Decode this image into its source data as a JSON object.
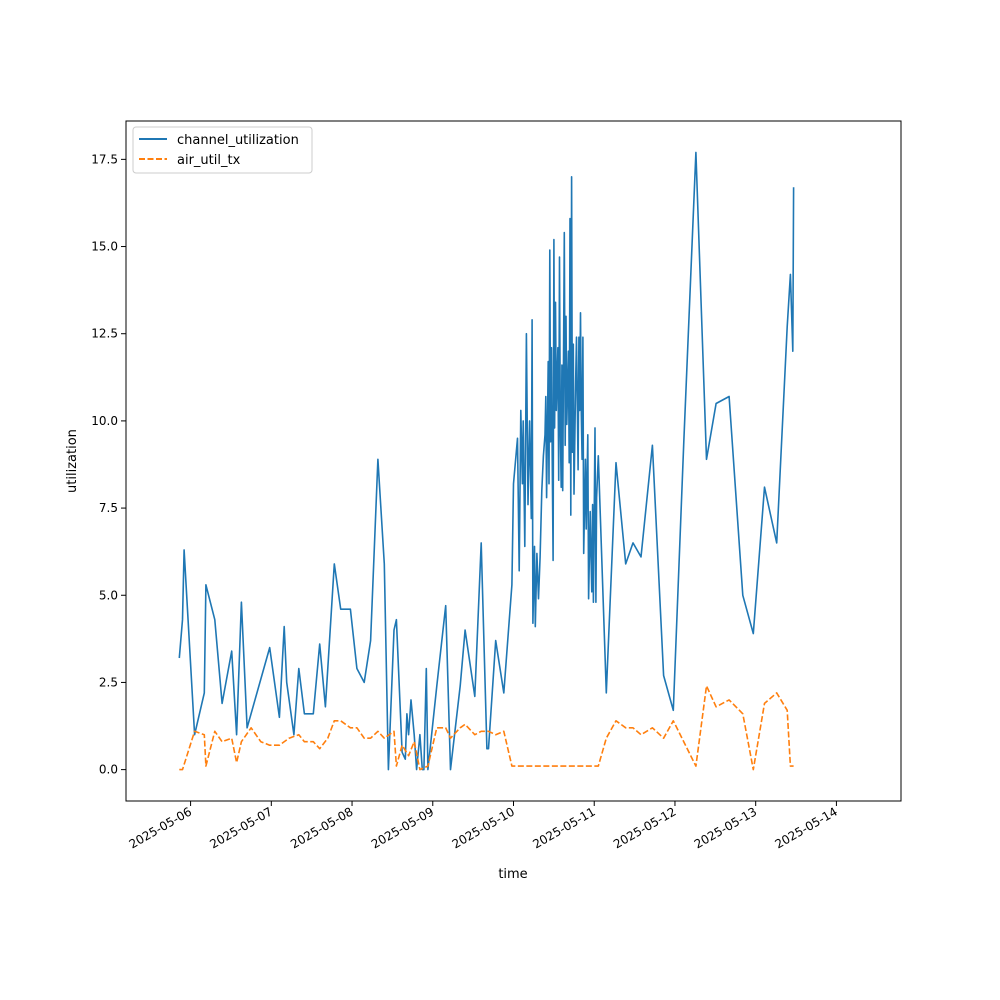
{
  "chart_data": {
    "type": "line",
    "xlabel": "time",
    "ylabel": "utilization",
    "x_ticks": [
      "2025-05-06",
      "2025-05-07",
      "2025-05-08",
      "2025-05-09",
      "2025-05-10",
      "2025-05-11",
      "2025-05-12",
      "2025-05-13",
      "2025-05-14"
    ],
    "y_ticks": [
      "0.0",
      "2.5",
      "5.0",
      "7.5",
      "10.0",
      "12.5",
      "15.0",
      "17.5"
    ],
    "xlim": [
      "2025-05-05 04:48",
      "2025-05-14 19:12"
    ],
    "ylim": [
      -0.9,
      18.6
    ],
    "legend": "top-left",
    "grid": false,
    "series": [
      {
        "name": "channel_utilization",
        "color": "#1f77b4",
        "style": "solid",
        "points": [
          [
            "2025-05-05 20:38",
            3.2
          ],
          [
            "2025-05-05 21:36",
            4.3
          ],
          [
            "2025-05-05 22:05",
            6.3
          ],
          [
            "2025-05-06 01:12",
            1.0
          ],
          [
            "2025-05-06 04:05",
            2.2
          ],
          [
            "2025-05-06 04:34",
            5.3
          ],
          [
            "2025-05-06 07:12",
            4.3
          ],
          [
            "2025-05-06 09:22",
            1.9
          ],
          [
            "2025-05-06 12:14",
            3.4
          ],
          [
            "2025-05-06 13:41",
            1.0
          ],
          [
            "2025-05-06 15:07",
            4.8
          ],
          [
            "2025-05-06 16:48",
            1.2
          ],
          [
            "2025-05-06 23:31",
            3.5
          ],
          [
            "2025-05-07 02:24",
            1.5
          ],
          [
            "2025-05-07 03:50",
            4.1
          ],
          [
            "2025-05-07 04:34",
            2.5
          ],
          [
            "2025-05-07 06:43",
            1.0
          ],
          [
            "2025-05-07 08:10",
            2.9
          ],
          [
            "2025-05-07 09:50",
            1.6
          ],
          [
            "2025-05-07 12:29",
            1.6
          ],
          [
            "2025-05-07 14:24",
            3.6
          ],
          [
            "2025-05-07 16:05",
            1.8
          ],
          [
            "2025-05-07 18:43",
            5.9
          ],
          [
            "2025-05-07 20:38",
            4.6
          ],
          [
            "2025-05-07 23:31",
            4.6
          ],
          [
            "2025-05-08 01:26",
            2.9
          ],
          [
            "2025-05-08 03:36",
            2.5
          ],
          [
            "2025-05-08 05:31",
            3.7
          ],
          [
            "2025-05-08 07:41",
            8.9
          ],
          [
            "2025-05-08 09:36",
            5.9
          ],
          [
            "2025-05-08 10:48",
            0.0
          ],
          [
            "2025-05-08 12:29",
            4.0
          ],
          [
            "2025-05-08 13:12",
            4.3
          ],
          [
            "2025-05-08 14:53",
            0.5
          ],
          [
            "2025-05-08 15:50",
            0.3
          ],
          [
            "2025-05-08 16:19",
            1.6
          ],
          [
            "2025-05-08 16:48",
            1.0
          ],
          [
            "2025-05-08 17:31",
            2.0
          ],
          [
            "2025-05-08 18:29",
            1.0
          ],
          [
            "2025-05-08 19:12",
            0.0
          ],
          [
            "2025-05-08 20:10",
            1.0
          ],
          [
            "2025-05-08 20:53",
            0.0
          ],
          [
            "2025-05-08 21:22",
            0.0
          ],
          [
            "2025-05-08 22:05",
            2.9
          ],
          [
            "2025-05-08 22:34",
            0.0
          ],
          [
            "2025-05-09 01:12",
            2.4
          ],
          [
            "2025-05-09 03:50",
            4.7
          ],
          [
            "2025-05-09 05:17",
            0.0
          ],
          [
            "2025-05-09 08:10",
            2.4
          ],
          [
            "2025-05-09 09:36",
            4.0
          ],
          [
            "2025-05-09 12:29",
            2.1
          ],
          [
            "2025-05-09 14:24",
            6.5
          ],
          [
            "2025-05-09 16:05",
            0.6
          ],
          [
            "2025-05-09 16:34",
            0.6
          ],
          [
            "2025-05-09 18:43",
            3.7
          ],
          [
            "2025-05-09 21:07",
            2.2
          ],
          [
            "2025-05-09 23:31",
            5.3
          ],
          [
            "2025-05-10 00:00",
            8.2
          ],
          [
            "2025-05-10 01:12",
            9.5
          ],
          [
            "2025-05-10 01:41",
            5.7
          ],
          [
            "2025-05-10 02:10",
            10.3
          ],
          [
            "2025-05-10 02:38",
            8.2
          ],
          [
            "2025-05-10 02:53",
            10.0
          ],
          [
            "2025-05-10 03:22",
            6.4
          ],
          [
            "2025-05-10 03:50",
            12.5
          ],
          [
            "2025-05-10 04:19",
            7.6
          ],
          [
            "2025-05-10 04:48",
            10.0
          ],
          [
            "2025-05-10 05:17",
            7.2
          ],
          [
            "2025-05-10 05:31",
            12.9
          ],
          [
            "2025-05-10 05:46",
            4.2
          ],
          [
            "2025-05-10 06:14",
            6.4
          ],
          [
            "2025-05-10 06:29",
            4.1
          ],
          [
            "2025-05-10 06:58",
            6.2
          ],
          [
            "2025-05-10 07:26",
            4.9
          ],
          [
            "2025-05-10 07:55",
            6.1
          ],
          [
            "2025-05-10 08:24",
            8.0
          ],
          [
            "2025-05-10 08:53",
            9.0
          ],
          [
            "2025-05-10 09:22",
            9.6
          ],
          [
            "2025-05-10 09:36",
            10.7
          ],
          [
            "2025-05-10 09:50",
            7.8
          ],
          [
            "2025-05-10 10:19",
            11.7
          ],
          [
            "2025-05-10 10:34",
            8.2
          ],
          [
            "2025-05-10 10:48",
            14.9
          ],
          [
            "2025-05-10 11:02",
            9.4
          ],
          [
            "2025-05-10 11:17",
            12.1
          ],
          [
            "2025-05-10 11:31",
            9.0
          ],
          [
            "2025-05-10 11:46",
            6.0
          ],
          [
            "2025-05-10 12:00",
            15.2
          ],
          [
            "2025-05-10 12:14",
            9.8
          ],
          [
            "2025-05-10 12:29",
            13.4
          ],
          [
            "2025-05-10 12:43",
            10.3
          ],
          [
            "2025-05-10 13:12",
            12.1
          ],
          [
            "2025-05-10 13:26",
            8.3
          ],
          [
            "2025-05-10 13:41",
            14.7
          ],
          [
            "2025-05-10 13:55",
            9.9
          ],
          [
            "2025-05-10 14:10",
            8.1
          ],
          [
            "2025-05-10 14:24",
            11.6
          ],
          [
            "2025-05-10 14:38",
            8.0
          ],
          [
            "2025-05-10 15:07",
            15.4
          ],
          [
            "2025-05-10 15:22",
            9.3
          ],
          [
            "2025-05-10 15:36",
            13.0
          ],
          [
            "2025-05-10 15:50",
            9.9
          ],
          [
            "2025-05-10 16:19",
            12.0
          ],
          [
            "2025-05-10 16:34",
            8.8
          ],
          [
            "2025-05-10 16:48",
            15.8
          ],
          [
            "2025-05-10 17:02",
            7.3
          ],
          [
            "2025-05-10 17:17",
            17.0
          ],
          [
            "2025-05-10 17:31",
            9.1
          ],
          [
            "2025-05-10 17:46",
            12.2
          ],
          [
            "2025-05-10 18:00",
            7.9
          ],
          [
            "2025-05-10 18:29",
            11.2
          ],
          [
            "2025-05-10 18:43",
            12.4
          ],
          [
            "2025-05-10 19:12",
            8.6
          ],
          [
            "2025-05-10 19:26",
            12.4
          ],
          [
            "2025-05-10 19:41",
            10.3
          ],
          [
            "2025-05-10 19:55",
            13.1
          ],
          [
            "2025-05-10 20:10",
            10.2
          ],
          [
            "2025-05-10 20:24",
            8.9
          ],
          [
            "2025-05-10 20:38",
            12.4
          ],
          [
            "2025-05-10 20:53",
            6.2
          ],
          [
            "2025-05-10 21:22",
            8.9
          ],
          [
            "2025-05-10 21:36",
            6.9
          ],
          [
            "2025-05-10 22:05",
            9.6
          ],
          [
            "2025-05-10 22:19",
            4.9
          ],
          [
            "2025-05-10 22:48",
            7.4
          ],
          [
            "2025-05-10 23:02",
            6.1
          ],
          [
            "2025-05-10 23:17",
            5.1
          ],
          [
            "2025-05-10 23:31",
            7.6
          ],
          [
            "2025-05-10 23:46",
            4.8
          ],
          [
            "2025-05-11 00:14",
            9.8
          ],
          [
            "2025-05-11 00:29",
            4.8
          ],
          [
            "2025-05-11 00:43",
            7.8
          ],
          [
            "2025-05-11 01:12",
            9.0
          ],
          [
            "2025-05-11 03:36",
            2.2
          ],
          [
            "2025-05-11 06:29",
            8.8
          ],
          [
            "2025-05-11 09:22",
            5.9
          ],
          [
            "2025-05-11 11:31",
            6.5
          ],
          [
            "2025-05-11 13:55",
            6.1
          ],
          [
            "2025-05-11 17:17",
            9.3
          ],
          [
            "2025-05-11 20:38",
            2.7
          ],
          [
            "2025-05-11 23:31",
            1.7
          ],
          [
            "2025-05-12 02:38",
            9.4
          ],
          [
            "2025-05-12 06:14",
            17.7
          ],
          [
            "2025-05-12 09:22",
            8.9
          ],
          [
            "2025-05-12 12:14",
            10.5
          ],
          [
            "2025-05-12 16:05",
            10.7
          ],
          [
            "2025-05-12 20:10",
            5.0
          ],
          [
            "2025-05-12 23:17",
            3.9
          ],
          [
            "2025-05-13 02:38",
            8.1
          ],
          [
            "2025-05-13 06:14",
            6.5
          ],
          [
            "2025-05-13 09:22",
            12.7
          ],
          [
            "2025-05-13 10:19",
            14.2
          ],
          [
            "2025-05-13 11:02",
            12.0
          ],
          [
            "2025-05-13 11:17",
            16.7
          ]
        ]
      },
      {
        "name": "air_util_tx",
        "color": "#ff7f0e",
        "style": "dashed",
        "points": [
          [
            "2025-05-05 20:38",
            0.0
          ],
          [
            "2025-05-05 21:36",
            0.0
          ],
          [
            "2025-05-06 01:12",
            1.1
          ],
          [
            "2025-05-06 04:05",
            1.0
          ],
          [
            "2025-05-06 04:34",
            0.1
          ],
          [
            "2025-05-06 07:12",
            1.1
          ],
          [
            "2025-05-06 09:22",
            0.8
          ],
          [
            "2025-05-06 12:14",
            0.9
          ],
          [
            "2025-05-06 13:41",
            0.2
          ],
          [
            "2025-05-06 15:07",
            0.8
          ],
          [
            "2025-05-06 18:00",
            1.2
          ],
          [
            "2025-05-06 20:53",
            0.8
          ],
          [
            "2025-05-06 23:31",
            0.7
          ],
          [
            "2025-05-07 02:24",
            0.7
          ],
          [
            "2025-05-07 05:17",
            0.9
          ],
          [
            "2025-05-07 08:10",
            1.0
          ],
          [
            "2025-05-07 09:50",
            0.8
          ],
          [
            "2025-05-07 12:29",
            0.8
          ],
          [
            "2025-05-07 14:24",
            0.6
          ],
          [
            "2025-05-07 16:48",
            0.9
          ],
          [
            "2025-05-07 18:43",
            1.4
          ],
          [
            "2025-05-07 20:38",
            1.4
          ],
          [
            "2025-05-07 23:31",
            1.2
          ],
          [
            "2025-05-08 01:26",
            1.2
          ],
          [
            "2025-05-08 03:36",
            0.9
          ],
          [
            "2025-05-08 05:31",
            0.9
          ],
          [
            "2025-05-08 07:41",
            1.1
          ],
          [
            "2025-05-08 09:36",
            0.9
          ],
          [
            "2025-05-08 12:29",
            1.1
          ],
          [
            "2025-05-08 13:12",
            0.1
          ],
          [
            "2025-05-08 14:53",
            0.7
          ],
          [
            "2025-05-08 16:48",
            0.4
          ],
          [
            "2025-05-08 18:29",
            0.8
          ],
          [
            "2025-05-08 20:10",
            0.0
          ],
          [
            "2025-05-08 22:34",
            0.1
          ],
          [
            "2025-05-09 01:12",
            1.2
          ],
          [
            "2025-05-09 03:50",
            1.2
          ],
          [
            "2025-05-09 05:17",
            0.9
          ],
          [
            "2025-05-09 08:10",
            1.2
          ],
          [
            "2025-05-09 09:36",
            1.3
          ],
          [
            "2025-05-09 12:29",
            1.0
          ],
          [
            "2025-05-09 14:24",
            1.1
          ],
          [
            "2025-05-09 16:34",
            1.1
          ],
          [
            "2025-05-09 18:43",
            1.0
          ],
          [
            "2025-05-09 21:07",
            1.1
          ],
          [
            "2025-05-09 23:31",
            0.1
          ],
          [
            "2025-05-10 09:22",
            0.1
          ],
          [
            "2025-05-10 18:43",
            0.1
          ],
          [
            "2025-05-10 23:31",
            0.1
          ],
          [
            "2025-05-11 01:12",
            0.1
          ],
          [
            "2025-05-11 03:36",
            0.9
          ],
          [
            "2025-05-11 06:29",
            1.4
          ],
          [
            "2025-05-11 09:22",
            1.2
          ],
          [
            "2025-05-11 11:31",
            1.2
          ],
          [
            "2025-05-11 13:55",
            1.0
          ],
          [
            "2025-05-11 17:17",
            1.2
          ],
          [
            "2025-05-11 20:38",
            0.9
          ],
          [
            "2025-05-11 23:31",
            1.4
          ],
          [
            "2025-05-12 06:14",
            0.1
          ],
          [
            "2025-05-12 09:22",
            2.4
          ],
          [
            "2025-05-12 12:14",
            1.8
          ],
          [
            "2025-05-12 16:05",
            2.0
          ],
          [
            "2025-05-12 20:10",
            1.6
          ],
          [
            "2025-05-12 23:17",
            0.0
          ],
          [
            "2025-05-13 02:38",
            1.9
          ],
          [
            "2025-05-13 06:14",
            2.2
          ],
          [
            "2025-05-13 09:22",
            1.7
          ],
          [
            "2025-05-13 10:19",
            0.1
          ],
          [
            "2025-05-13 11:17",
            0.1
          ]
        ]
      }
    ]
  }
}
